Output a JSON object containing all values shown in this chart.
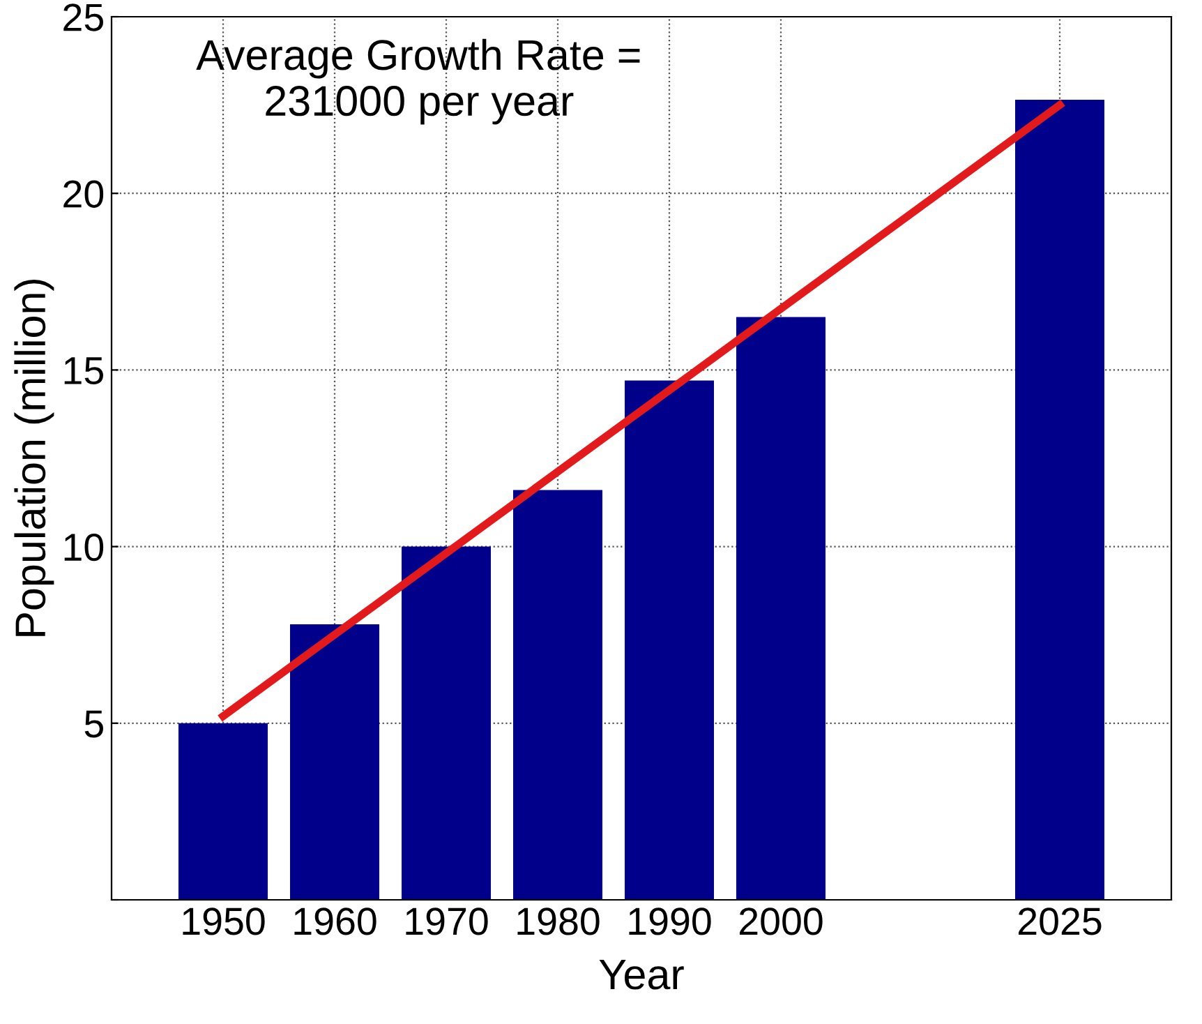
{
  "chart_data": {
    "type": "bar",
    "xlabel": "Year",
    "ylabel": "Population (million)",
    "x": [
      1950,
      1960,
      1970,
      1980,
      1990,
      2000,
      2025
    ],
    "series": [
      {
        "color": "#00008b",
        "values": [
          5.0,
          7.8,
          10.0,
          11.6,
          14.7,
          16.5,
          22.65
        ]
      },
      {
        "type": "line",
        "color": "#e31a1c",
        "x": [
          1950,
          2025
        ],
        "values": [
          5.2,
          22.5
        ]
      }
    ],
    "xlim": [
      1940,
      2035
    ],
    "xticks": [
      1950,
      1960,
      1970,
      1980,
      1990,
      2000,
      2025
    ],
    "ylim": [
      0,
      25
    ],
    "yticks": [
      {
        "value": 0,
        "label": null
      },
      5,
      10,
      15,
      20,
      25
    ],
    "grid": true,
    "line_style": "solid",
    "annotations": [
      "Average Growth Rate =\n231000 per year"
    ]
  }
}
